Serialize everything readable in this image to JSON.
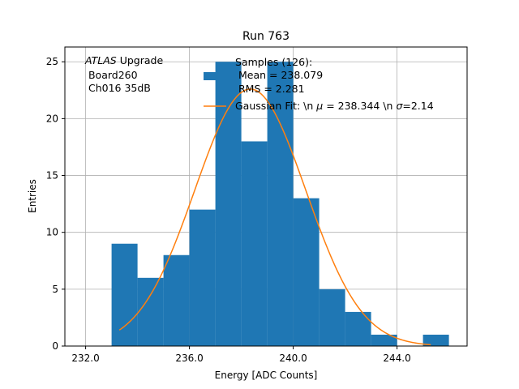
{
  "chart_data": {
    "type": "bar",
    "title": "Run 763",
    "xlabel": "Energy [ADC Counts]",
    "ylabel": "Entries",
    "xlim": [
      231.2,
      246.7
    ],
    "ylim": [
      0,
      26.3
    ],
    "grid": true,
    "bin_edges": [
      233,
      234,
      235,
      236,
      237,
      238,
      239,
      240,
      241,
      242,
      243,
      244,
      245,
      246
    ],
    "counts": [
      9,
      6,
      8,
      12,
      25,
      18,
      25,
      13,
      5,
      3,
      1,
      0,
      1
    ],
    "x_ticks": [
      232,
      236,
      240,
      244
    ],
    "x_tick_labels": [
      "232.0",
      "236.0",
      "240.0",
      "244.0"
    ],
    "y_ticks": [
      0,
      5,
      10,
      15,
      20,
      25
    ],
    "y_tick_labels": [
      "0",
      "5",
      "10",
      "15",
      "20",
      "25"
    ],
    "fit": {
      "mu": 238.344,
      "sigma": 2.14,
      "amplitude": 22.6,
      "x_range": [
        233.3,
        245.3
      ]
    },
    "colors": {
      "hist": "#1f77b4",
      "fit": "#ff7f0e",
      "grid": "#b0b0b0"
    },
    "annotation": {
      "line1_italic": "ATLAS",
      "line1_rest": " Upgrade",
      "line2": " Board260",
      "line3": " Ch016 35dB"
    },
    "legend": {
      "placement": "top-right",
      "samples_line1": "Samples (126):",
      "samples_line2": " Mean = 238.079",
      "samples_line3": " RMS = 2.281",
      "fit_label_a": "Gaussian Fit: \\n ",
      "fit_label_mu": "μ",
      "fit_label_b": " = 238.344 \\n ",
      "fit_label_sigma": "σ",
      "fit_label_c": "=2.14"
    }
  }
}
